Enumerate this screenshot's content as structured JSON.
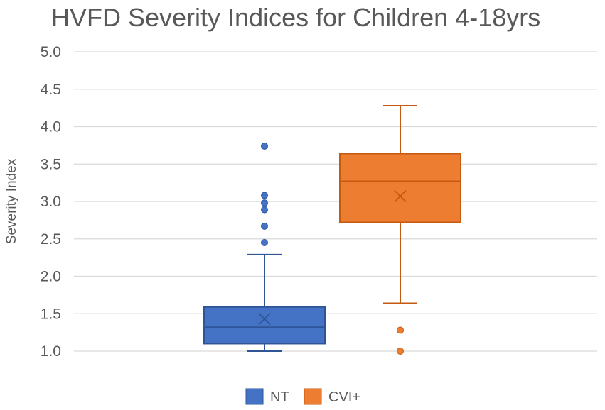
{
  "chart_data": {
    "type": "box",
    "title": "HVFD Severity Indices for Children 4-18yrs",
    "xlabel": "",
    "ylabel": "Severity Index",
    "ylim": [
      1.0,
      5.0
    ],
    "yticks": [
      "1.0",
      "1.5",
      "2.0",
      "2.5",
      "3.0",
      "3.5",
      "4.0",
      "4.5",
      "5.0"
    ],
    "grid": true,
    "legend_position": "bottom",
    "series": [
      {
        "name": "NT",
        "color": "#4472C4",
        "stroke": "#2F5597",
        "whisker_low": 1.0,
        "q1": 1.1,
        "median": 1.32,
        "q3": 1.59,
        "whisker_high": 2.29,
        "mean": 1.43,
        "outliers": [
          2.45,
          2.67,
          2.89,
          2.98,
          3.08,
          3.74
        ]
      },
      {
        "name": "CVI+",
        "color": "#ED7D31",
        "stroke": "#C55A11",
        "whisker_low": 1.64,
        "q1": 2.72,
        "median": 3.27,
        "q3": 3.64,
        "whisker_high": 4.28,
        "mean": 3.07,
        "outliers": [
          1.0,
          1.28
        ]
      }
    ]
  }
}
